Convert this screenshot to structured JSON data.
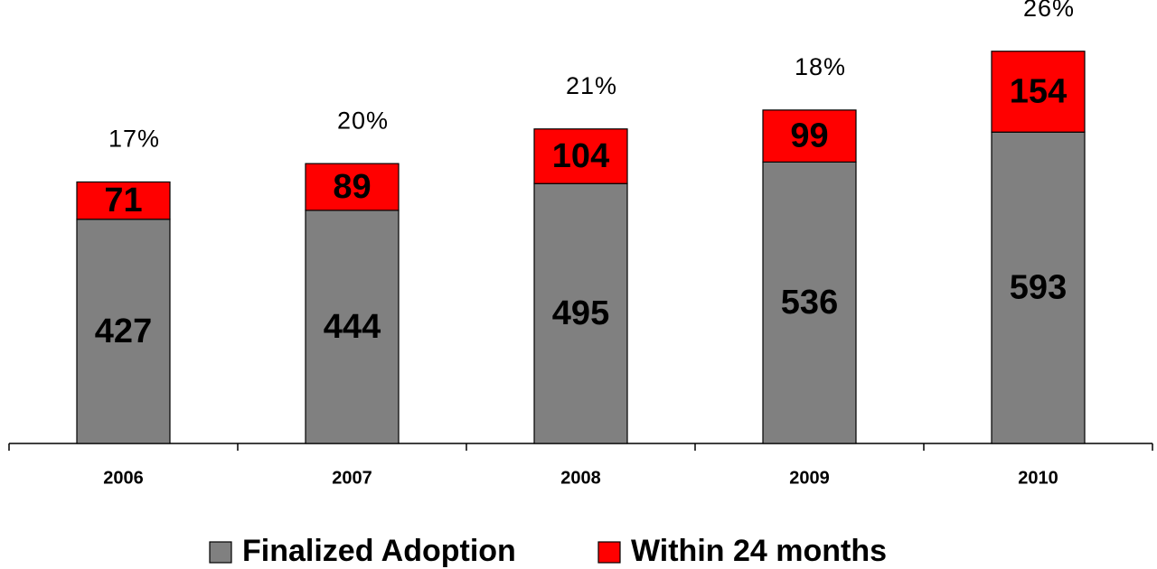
{
  "chart_data": {
    "type": "stacked_bar",
    "categories": [
      "2006",
      "2007",
      "2008",
      "2009",
      "2010"
    ],
    "series": [
      {
        "name": "Finalized Adoption",
        "color": "#808080",
        "values": [
          427,
          444,
          495,
          536,
          593
        ]
      },
      {
        "name": "Within 24 months",
        "color": "#ff0000",
        "values": [
          71,
          89,
          104,
          99,
          154
        ]
      }
    ],
    "annotations": [
      "17%",
      "20%",
      "21%",
      "18%",
      "26%"
    ],
    "ylim": [
      0,
      750
    ],
    "legend": "bottom"
  }
}
